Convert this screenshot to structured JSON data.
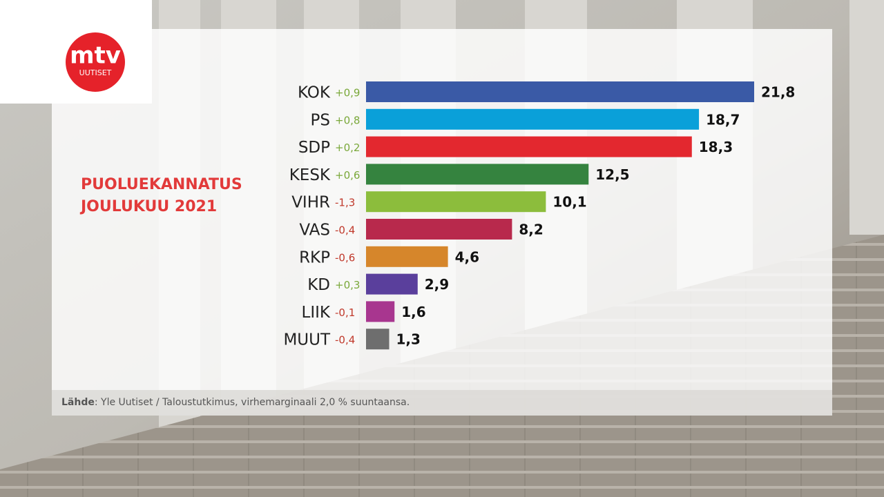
{
  "chart_data": {
    "type": "bar",
    "orientation": "horizontal",
    "title": "PUOLUEKANNATUS",
    "subtitle": "JOULUKUU 2021",
    "categories": [
      "KOK",
      "PS",
      "SDP",
      "KESK",
      "VIHR",
      "VAS",
      "RKP",
      "KD",
      "LIIK",
      "MUUT"
    ],
    "changes": [
      0.9,
      0.8,
      0.2,
      0.6,
      -1.3,
      -0.4,
      -0.6,
      0.3,
      -0.1,
      -0.4
    ],
    "change_labels": [
      "+0,9",
      "+0,8",
      "+0,2",
      "+0,6",
      "-1,3",
      "-0,4",
      "-0,6",
      "+0,3",
      "-0,1",
      "-0,4"
    ],
    "values": [
      21.8,
      18.7,
      18.3,
      12.5,
      10.1,
      8.2,
      4.6,
      2.9,
      1.6,
      1.3
    ],
    "value_labels": [
      "21,8",
      "18,7",
      "18,3",
      "12,5",
      "10,1",
      "8,2",
      "4,6",
      "2,9",
      "1,6",
      "1,3"
    ],
    "colors": [
      "#3a5aa6",
      "#0aa0d9",
      "#e3282f",
      "#35833f",
      "#8cbd3c",
      "#b8294c",
      "#d6862b",
      "#5a3f9c",
      "#a8368f",
      "#6e6e6e"
    ],
    "source_label": "Lähde",
    "source_text": ": Yle Uutiset / Taloustutkimus, virhemarginaali 2,0 % suuntaansa."
  },
  "logo": {
    "name": "mtv",
    "sub": "UUTISET"
  }
}
